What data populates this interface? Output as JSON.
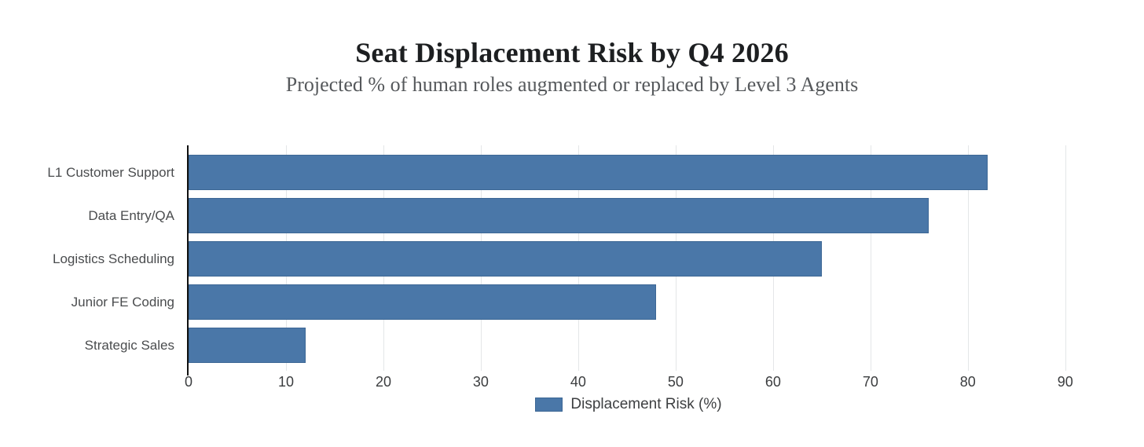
{
  "header": {
    "title": "Seat Displacement Risk by Q4 2026",
    "subtitle": "Projected % of human roles augmented or replaced by Level 3 Agents"
  },
  "chart_data": {
    "type": "bar",
    "orientation": "horizontal",
    "title": "Seat Displacement Risk by Q4 2026",
    "subtitle": "Projected % of human roles augmented or replaced by Level 3 Agents",
    "categories": [
      "L1 Customer Support",
      "Data Entry/QA",
      "Logistics Scheduling",
      "Junior FE Coding",
      "Strategic Sales"
    ],
    "values": [
      82,
      76,
      65,
      48,
      12
    ],
    "series_name": "Displacement Risk (%)",
    "xlabel": "",
    "ylabel": "",
    "xlim": [
      0,
      93
    ],
    "xticks": [
      0,
      10,
      20,
      30,
      40,
      50,
      60,
      70,
      80,
      90
    ],
    "grid": true,
    "legend_position": "bottom",
    "bar_color": "#4a77a8",
    "bar_border_color": "#3d6795",
    "gridline_color": "#e4e6e8",
    "axis_line_color": "#101010"
  },
  "legend": {
    "label": "Displacement Risk (%)",
    "swatch_color": "#4a77a8"
  }
}
